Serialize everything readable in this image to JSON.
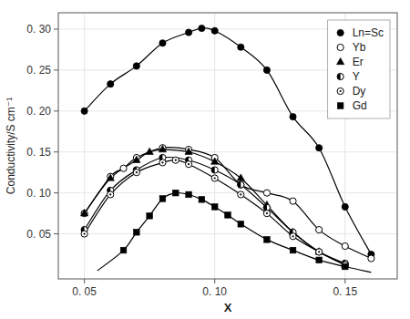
{
  "chart_data": {
    "type": "line",
    "xlabel": "X",
    "ylabel": "Conductivity/S cm⁻¹",
    "xlim": [
      0.04,
      0.17
    ],
    "ylim": [
      -0.005,
      0.32
    ],
    "xticks": [
      {
        "value": 0.05,
        "label": "0. 05"
      },
      {
        "value": 0.1,
        "label": "0. 10"
      },
      {
        "value": 0.15,
        "label": "0. 15"
      }
    ],
    "yticks": [
      {
        "value": 0.05,
        "label": "0. 05"
      },
      {
        "value": 0.1,
        "label": "0. 10"
      },
      {
        "value": 0.15,
        "label": "0. 15"
      },
      {
        "value": 0.2,
        "label": "0. 20"
      },
      {
        "value": 0.25,
        "label": "0. 25"
      },
      {
        "value": 0.3,
        "label": "0. 30"
      }
    ],
    "legend": "upper right",
    "series": [
      {
        "name": "Ln=Sc",
        "color": "#000000",
        "marker": "filled_circle",
        "x": [
          0.05,
          0.06,
          0.07,
          0.08,
          0.09,
          0.095,
          0.1,
          0.11,
          0.12,
          0.13,
          0.14,
          0.15,
          0.16
        ],
        "values": [
          0.2,
          0.233,
          0.255,
          0.283,
          0.296,
          0.301,
          0.298,
          0.278,
          0.25,
          0.193,
          0.155,
          0.083,
          0.025
        ],
        "curve_x": [
          0.05,
          0.06,
          0.07,
          0.08,
          0.09,
          0.095,
          0.1,
          0.11,
          0.12,
          0.13,
          0.14,
          0.15,
          0.16
        ],
        "curve_values": [
          0.2,
          0.233,
          0.255,
          0.283,
          0.296,
          0.301,
          0.298,
          0.278,
          0.25,
          0.193,
          0.155,
          0.083,
          0.025
        ]
      },
      {
        "name": "Yb",
        "color": "#000000",
        "marker": "open_circle",
        "x": [
          0.05,
          0.06,
          0.065,
          0.07,
          0.08,
          0.09,
          0.1,
          0.11,
          0.12,
          0.13,
          0.14,
          0.15,
          0.16
        ],
        "values": [
          0.075,
          0.12,
          0.13,
          0.143,
          0.155,
          0.153,
          0.143,
          0.11,
          0.1,
          0.09,
          0.055,
          0.035,
          0.02
        ],
        "curve_x": [
          0.05,
          0.06,
          0.065,
          0.07,
          0.08,
          0.09,
          0.1,
          0.11,
          0.12,
          0.13,
          0.14,
          0.15,
          0.16
        ],
        "curve_values": [
          0.075,
          0.12,
          0.13,
          0.143,
          0.155,
          0.153,
          0.143,
          0.11,
          0.1,
          0.09,
          0.055,
          0.035,
          0.02
        ]
      },
      {
        "name": "Er",
        "color": "#000000",
        "marker": "filled_triangle",
        "x": [
          0.05,
          0.06,
          0.07,
          0.075,
          0.08,
          0.09,
          0.1,
          0.11,
          0.12,
          0.13,
          0.14,
          0.15
        ],
        "values": [
          0.075,
          0.118,
          0.14,
          0.15,
          0.153,
          0.15,
          0.138,
          0.118,
          0.085,
          0.052,
          0.028,
          0.012
        ],
        "curve_x": [
          0.05,
          0.06,
          0.07,
          0.075,
          0.08,
          0.09,
          0.1,
          0.11,
          0.12,
          0.13,
          0.14,
          0.15
        ],
        "curve_values": [
          0.075,
          0.118,
          0.14,
          0.15,
          0.153,
          0.15,
          0.138,
          0.118,
          0.085,
          0.052,
          0.028,
          0.012
        ]
      },
      {
        "name": "Y",
        "color": "#000000",
        "marker": "half_circle",
        "x": [
          0.05,
          0.06,
          0.07,
          0.08,
          0.09,
          0.1,
          0.11,
          0.12,
          0.13,
          0.14,
          0.15
        ],
        "values": [
          0.055,
          0.103,
          0.128,
          0.143,
          0.14,
          0.128,
          0.11,
          0.082,
          0.052,
          0.028,
          0.014
        ],
        "curve_x": [
          0.05,
          0.06,
          0.07,
          0.08,
          0.09,
          0.1,
          0.11,
          0.12,
          0.13,
          0.14,
          0.15
        ],
        "curve_values": [
          0.055,
          0.103,
          0.128,
          0.143,
          0.14,
          0.128,
          0.11,
          0.082,
          0.052,
          0.028,
          0.014
        ]
      },
      {
        "name": "Dy",
        "color": "#000000",
        "marker": "dot_circle",
        "x": [
          0.05,
          0.06,
          0.07,
          0.08,
          0.085,
          0.09,
          0.1,
          0.11,
          0.12,
          0.13,
          0.14,
          0.15
        ],
        "values": [
          0.05,
          0.098,
          0.125,
          0.137,
          0.14,
          0.135,
          0.118,
          0.098,
          0.075,
          0.047,
          0.028,
          0.012
        ],
        "curve_x": [
          0.05,
          0.06,
          0.07,
          0.08,
          0.085,
          0.09,
          0.1,
          0.11,
          0.12,
          0.13,
          0.14,
          0.15
        ],
        "curve_values": [
          0.05,
          0.098,
          0.125,
          0.137,
          0.14,
          0.135,
          0.118,
          0.098,
          0.075,
          0.047,
          0.028,
          0.012
        ]
      },
      {
        "name": "Gd",
        "color": "#000000",
        "marker": "filled_square",
        "x": [
          0.065,
          0.07,
          0.075,
          0.08,
          0.085,
          0.09,
          0.095,
          0.1,
          0.105,
          0.11,
          0.12,
          0.13,
          0.14,
          0.15
        ],
        "values": [
          0.03,
          0.052,
          0.072,
          0.093,
          0.1,
          0.098,
          0.092,
          0.083,
          0.073,
          0.062,
          0.043,
          0.03,
          0.018,
          0.01
        ],
        "curve_x": [
          0.055,
          0.065,
          0.07,
          0.075,
          0.08,
          0.085,
          0.09,
          0.095,
          0.1,
          0.105,
          0.11,
          0.12,
          0.13,
          0.14,
          0.15,
          0.16
        ],
        "curve_values": [
          0.005,
          0.03,
          0.052,
          0.072,
          0.093,
          0.1,
          0.098,
          0.092,
          0.083,
          0.073,
          0.062,
          0.043,
          0.03,
          0.018,
          0.01,
          0.003
        ]
      }
    ]
  }
}
